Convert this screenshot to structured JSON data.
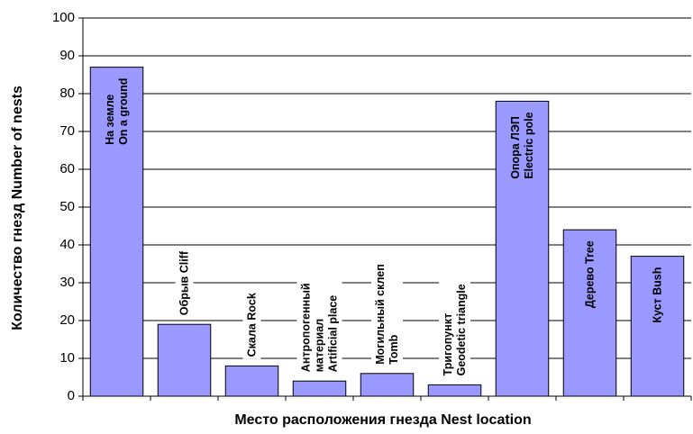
{
  "chart_data": {
    "type": "bar",
    "xlabel": "Место расположения гнезда Nest location",
    "ylabel": "Количество гнезд Number of nests",
    "ylim": [
      0,
      100
    ],
    "y_ticks": [
      "0",
      "10",
      "20",
      "30",
      "40",
      "50",
      "60",
      "70",
      "80",
      "90",
      "100"
    ],
    "grid": "horizontal",
    "bar_color": "#9999ff",
    "categories": [
      "На земле On a ground",
      "Обрыв Cliff",
      "Скала Rock",
      "Антропогенный материал Artificial place",
      "Могильный склеп Tomb",
      "Тригопункт Geodetic triangle",
      "Опора ЛЭП Electric pole",
      "Дерево Tree",
      "Куст Bush"
    ],
    "category_label_lines": [
      [
        "На земле",
        "On a ground"
      ],
      [
        "Обрыв Cliff"
      ],
      [
        "Скала Rock"
      ],
      [
        "Антропогенный",
        "материал",
        "Artificial place"
      ],
      [
        "Могильный склеп",
        "Tomb"
      ],
      [
        "Тригопункт",
        "Geodetic triangle"
      ],
      [
        "Опора ЛЭП",
        "Electric pole"
      ],
      [
        "Дерево Tree"
      ],
      [
        "Куст Bush"
      ]
    ],
    "values": [
      87,
      19,
      8,
      4,
      6,
      3,
      78,
      44,
      37
    ]
  }
}
